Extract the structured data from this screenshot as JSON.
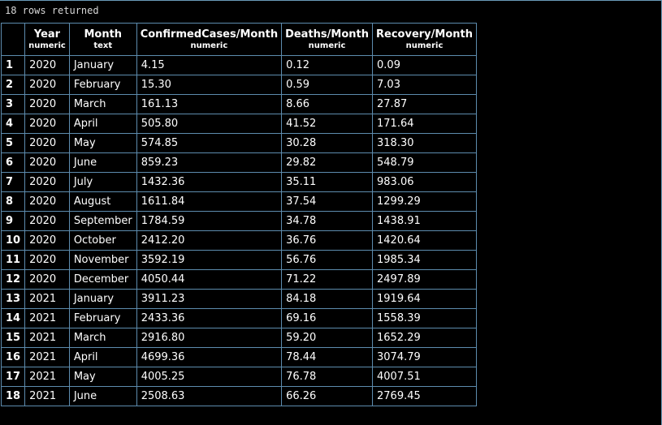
{
  "status": {
    "text": "18 rows returned"
  },
  "columns": [
    {
      "name": "Year",
      "type": "numeric"
    },
    {
      "name": "Month",
      "type": "text"
    },
    {
      "name": "ConfirmedCases/Month",
      "type": "numeric"
    },
    {
      "name": "Deaths/Month",
      "type": "numeric"
    },
    {
      "name": "Recovery/Month",
      "type": "numeric"
    }
  ],
  "rows": [
    {
      "n": "1",
      "year": "2020",
      "month": "January",
      "confirmed": "4.15",
      "deaths": "0.12",
      "recovery": "0.09"
    },
    {
      "n": "2",
      "year": "2020",
      "month": "February",
      "confirmed": "15.30",
      "deaths": "0.59",
      "recovery": "7.03"
    },
    {
      "n": "3",
      "year": "2020",
      "month": "March",
      "confirmed": "161.13",
      "deaths": "8.66",
      "recovery": "27.87"
    },
    {
      "n": "4",
      "year": "2020",
      "month": "April",
      "confirmed": "505.80",
      "deaths": "41.52",
      "recovery": "171.64"
    },
    {
      "n": "5",
      "year": "2020",
      "month": "May",
      "confirmed": "574.85",
      "deaths": "30.28",
      "recovery": "318.30"
    },
    {
      "n": "6",
      "year": "2020",
      "month": "June",
      "confirmed": "859.23",
      "deaths": "29.82",
      "recovery": "548.79"
    },
    {
      "n": "7",
      "year": "2020",
      "month": "July",
      "confirmed": "1432.36",
      "deaths": "35.11",
      "recovery": "983.06"
    },
    {
      "n": "8",
      "year": "2020",
      "month": "August",
      "confirmed": "1611.84",
      "deaths": "37.54",
      "recovery": "1299.29"
    },
    {
      "n": "9",
      "year": "2020",
      "month": "September",
      "confirmed": "1784.59",
      "deaths": "34.78",
      "recovery": "1438.91"
    },
    {
      "n": "10",
      "year": "2020",
      "month": "October",
      "confirmed": "2412.20",
      "deaths": "36.76",
      "recovery": "1420.64"
    },
    {
      "n": "11",
      "year": "2020",
      "month": "November",
      "confirmed": "3592.19",
      "deaths": "56.76",
      "recovery": "1985.34"
    },
    {
      "n": "12",
      "year": "2020",
      "month": "December",
      "confirmed": "4050.44",
      "deaths": "71.22",
      "recovery": "2497.89"
    },
    {
      "n": "13",
      "year": "2021",
      "month": "January",
      "confirmed": "3911.23",
      "deaths": "84.18",
      "recovery": "1919.64"
    },
    {
      "n": "14",
      "year": "2021",
      "month": "February",
      "confirmed": "2433.36",
      "deaths": "69.16",
      "recovery": "1558.39"
    },
    {
      "n": "15",
      "year": "2021",
      "month": "March",
      "confirmed": "2916.80",
      "deaths": "59.20",
      "recovery": "1652.29"
    },
    {
      "n": "16",
      "year": "2021",
      "month": "April",
      "confirmed": "4699.36",
      "deaths": "78.44",
      "recovery": "3074.79"
    },
    {
      "n": "17",
      "year": "2021",
      "month": "May",
      "confirmed": "4005.25",
      "deaths": "76.78",
      "recovery": "4007.51"
    },
    {
      "n": "18",
      "year": "2021",
      "month": "June",
      "confirmed": "2508.63",
      "deaths": "66.26",
      "recovery": "2769.45"
    }
  ],
  "colors": {
    "background": "#000000",
    "grid_border": "#5d8cae",
    "text": "#ffffff"
  }
}
